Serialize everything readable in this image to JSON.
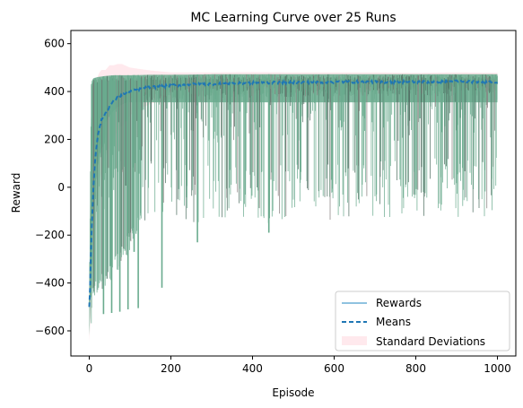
{
  "chart_data": {
    "type": "line",
    "title": "MC Learning Curve over 25 Runs",
    "xlabel": "Episode",
    "ylabel": "Reward",
    "xlim": [
      -45,
      1045
    ],
    "ylim": [
      -705,
      655
    ],
    "xticks": [
      0,
      200,
      400,
      600,
      800,
      1000
    ],
    "yticks": [
      -600,
      -400,
      -200,
      0,
      200,
      400,
      600
    ],
    "grid": false,
    "legend_position": "lower-right",
    "runs": 25,
    "episodes": 1000,
    "series": [
      {
        "name": "Rewards",
        "style": "solid",
        "color": "#6aab8e",
        "envelope": {
          "x": [
            0,
            5,
            10,
            20,
            40,
            60,
            100,
            150,
            200,
            300,
            400,
            600,
            800,
            1000
          ],
          "upper": [
            -480,
            440,
            455,
            460,
            465,
            468,
            468,
            470,
            470,
            472,
            472,
            472,
            472,
            472
          ],
          "typical_low": [
            -510,
            -520,
            -500,
            -450,
            -420,
            -380,
            -260,
            -120,
            -140,
            -160,
            -150,
            -150,
            -130,
            -120
          ]
        },
        "deep_dips": [
          {
            "x": 35,
            "y": -530
          },
          {
            "x": 55,
            "y": -525
          },
          {
            "x": 75,
            "y": -520
          },
          {
            "x": 95,
            "y": -510
          },
          {
            "x": 120,
            "y": -505
          },
          {
            "x": 178,
            "y": -420
          },
          {
            "x": 110,
            "y": -270
          },
          {
            "x": 265,
            "y": -230
          },
          {
            "x": 440,
            "y": -190
          }
        ]
      },
      {
        "name": "Means",
        "style": "dashed",
        "color": "#1f77b4",
        "x": [
          0,
          2,
          5,
          10,
          15,
          20,
          25,
          30,
          40,
          50,
          60,
          70,
          80,
          100,
          120,
          150,
          200,
          250,
          300,
          400,
          500,
          600,
          700,
          800,
          900,
          1000
        ],
        "y": [
          -500,
          -420,
          -220,
          -10,
          130,
          200,
          250,
          280,
          310,
          340,
          360,
          375,
          385,
          400,
          410,
          418,
          425,
          430,
          432,
          436,
          438,
          440,
          440,
          440,
          442,
          440
        ]
      },
      {
        "name": "Standard Deviations",
        "style": "band",
        "color": "#ffc0cb",
        "x": [
          0,
          2,
          5,
          10,
          15,
          20,
          25,
          30,
          40,
          50,
          60,
          70,
          80,
          100,
          120,
          150,
          200,
          250,
          300,
          400,
          500,
          600,
          700,
          800,
          900,
          1000
        ],
        "std": [
          145,
          170,
          260,
          300,
          290,
          260,
          230,
          210,
          180,
          170,
          150,
          140,
          130,
          100,
          85,
          70,
          55,
          50,
          48,
          45,
          42,
          40,
          40,
          38,
          38,
          38
        ]
      }
    ]
  }
}
